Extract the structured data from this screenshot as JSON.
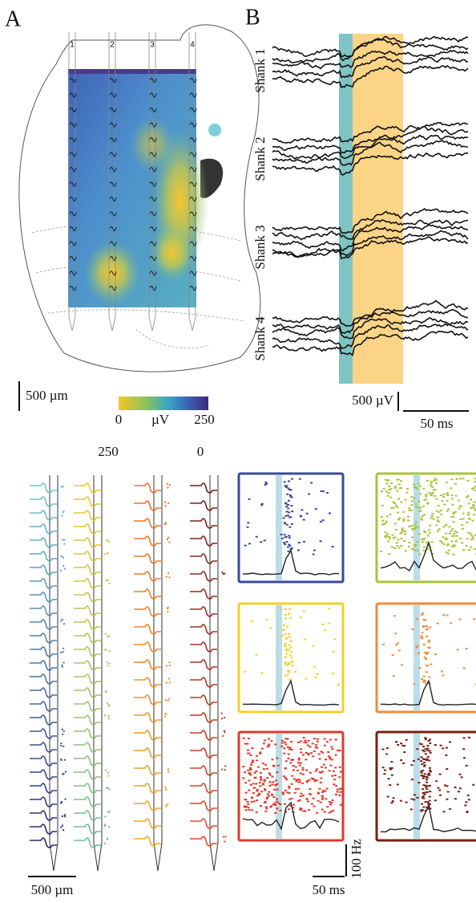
{
  "panel_a": {
    "label": "A",
    "shank_numbers": [
      "1",
      "2",
      "3",
      "4"
    ],
    "scale_bar": "500 µm",
    "colorbar": {
      "min": "0",
      "unit": "µV",
      "max": "250"
    }
  },
  "panel_b": {
    "label": "B",
    "shank_labels": [
      "Shank 1",
      "Shank 2",
      "Shank 3",
      "Shank 4"
    ],
    "voltage_scale": "500 µV",
    "time_scale": "50 ms"
  },
  "panel_c": {
    "color_labels": [
      "250",
      "0"
    ],
    "scale_bar": "500 µm",
    "time_scale": "50 ms",
    "rate_scale": "100 Hz"
  }
}
